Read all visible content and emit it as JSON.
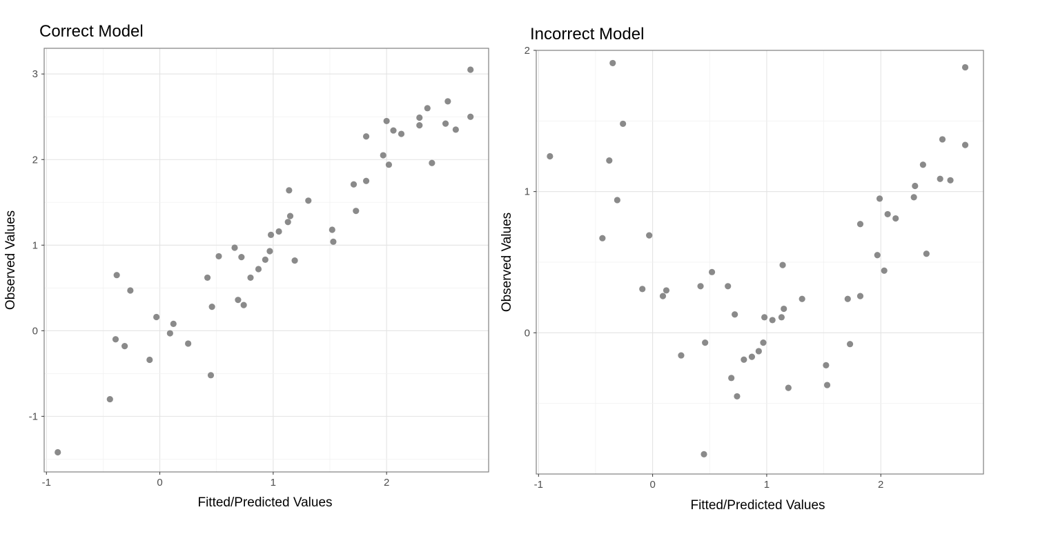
{
  "chart_data": [
    {
      "type": "scatter",
      "title": "Correct Model",
      "xlabel": "Fitted/Predicted Values",
      "ylabel": "Observed Values",
      "xlim": [
        -1.02,
        2.9
      ],
      "ylim": [
        -1.65,
        3.3
      ],
      "xticks": [
        -1,
        0,
        1,
        2
      ],
      "xtick_labels": [
        "-1",
        "0",
        "1",
        "2"
      ],
      "yticks": [
        -1,
        0,
        1,
        2,
        3
      ],
      "ytick_labels": [
        "-1",
        "0",
        "1",
        "2",
        "3"
      ],
      "grid": true,
      "point_color": "#8a8a8a",
      "points": [
        {
          "x": -0.9,
          "y": -1.42
        },
        {
          "x": -0.44,
          "y": -0.8
        },
        {
          "x": -0.38,
          "y": 0.65
        },
        {
          "x": -0.39,
          "y": -0.1
        },
        {
          "x": -0.31,
          "y": -0.18
        },
        {
          "x": -0.26,
          "y": 0.47
        },
        {
          "x": -0.09,
          "y": -0.34
        },
        {
          "x": -0.03,
          "y": 0.16
        },
        {
          "x": 0.09,
          "y": -0.03
        },
        {
          "x": 0.12,
          "y": 0.08
        },
        {
          "x": 0.25,
          "y": -0.15
        },
        {
          "x": 0.42,
          "y": 0.62
        },
        {
          "x": 0.45,
          "y": -0.52
        },
        {
          "x": 0.46,
          "y": 0.28
        },
        {
          "x": 0.52,
          "y": 0.87
        },
        {
          "x": 0.66,
          "y": 0.97
        },
        {
          "x": 0.69,
          "y": 0.36
        },
        {
          "x": 0.72,
          "y": 0.86
        },
        {
          "x": 0.74,
          "y": 0.3
        },
        {
          "x": 0.8,
          "y": 0.62
        },
        {
          "x": 0.87,
          "y": 0.72
        },
        {
          "x": 0.93,
          "y": 0.83
        },
        {
          "x": 0.97,
          "y": 0.93
        },
        {
          "x": 0.98,
          "y": 1.12
        },
        {
          "x": 1.05,
          "y": 1.16
        },
        {
          "x": 1.13,
          "y": 1.27
        },
        {
          "x": 1.15,
          "y": 1.34
        },
        {
          "x": 1.14,
          "y": 1.64
        },
        {
          "x": 1.19,
          "y": 0.82
        },
        {
          "x": 1.31,
          "y": 1.52
        },
        {
          "x": 1.52,
          "y": 1.18
        },
        {
          "x": 1.53,
          "y": 1.04
        },
        {
          "x": 1.71,
          "y": 1.71
        },
        {
          "x": 1.73,
          "y": 1.4
        },
        {
          "x": 1.82,
          "y": 1.75
        },
        {
          "x": 1.82,
          "y": 2.27
        },
        {
          "x": 1.97,
          "y": 2.05
        },
        {
          "x": 2.0,
          "y": 2.45
        },
        {
          "x": 2.02,
          "y": 1.94
        },
        {
          "x": 2.06,
          "y": 2.34
        },
        {
          "x": 2.13,
          "y": 2.3
        },
        {
          "x": 2.29,
          "y": 2.4
        },
        {
          "x": 2.29,
          "y": 2.49
        },
        {
          "x": 2.36,
          "y": 2.6
        },
        {
          "x": 2.4,
          "y": 1.96
        },
        {
          "x": 2.52,
          "y": 2.42
        },
        {
          "x": 2.54,
          "y": 2.68
        },
        {
          "x": 2.61,
          "y": 2.35
        },
        {
          "x": 2.74,
          "y": 3.05
        },
        {
          "x": 2.74,
          "y": 2.5
        }
      ]
    },
    {
      "type": "scatter",
      "title": "Incorrect Model",
      "xlabel": "Fitted/Predicted Values",
      "ylabel": "Observed Values",
      "xlim": [
        -1.02,
        2.9
      ],
      "ylim": [
        -1.0,
        2.0
      ],
      "xticks": [
        -1,
        0,
        1,
        2
      ],
      "xtick_labels": [
        "-1",
        "0",
        "1",
        "2"
      ],
      "yticks": [
        0,
        1,
        2
      ],
      "ytick_labels": [
        "0",
        "1",
        "2"
      ],
      "grid": true,
      "point_color": "#8a8a8a",
      "points": [
        {
          "x": -0.9,
          "y": 1.25
        },
        {
          "x": -0.44,
          "y": 0.67
        },
        {
          "x": -0.38,
          "y": 1.22
        },
        {
          "x": -0.35,
          "y": 1.91
        },
        {
          "x": -0.31,
          "y": 0.94
        },
        {
          "x": -0.26,
          "y": 1.48
        },
        {
          "x": -0.09,
          "y": 0.31
        },
        {
          "x": -0.03,
          "y": 0.69
        },
        {
          "x": 0.09,
          "y": 0.26
        },
        {
          "x": 0.12,
          "y": 0.3
        },
        {
          "x": 0.25,
          "y": -0.16
        },
        {
          "x": 0.42,
          "y": 0.33
        },
        {
          "x": 0.45,
          "y": -0.86
        },
        {
          "x": 0.46,
          "y": -0.07
        },
        {
          "x": 0.52,
          "y": 0.43
        },
        {
          "x": 0.66,
          "y": 0.33
        },
        {
          "x": 0.69,
          "y": -0.32
        },
        {
          "x": 0.72,
          "y": 0.13
        },
        {
          "x": 0.74,
          "y": -0.45
        },
        {
          "x": 0.8,
          "y": -0.19
        },
        {
          "x": 0.87,
          "y": -0.17
        },
        {
          "x": 0.93,
          "y": -0.13
        },
        {
          "x": 0.97,
          "y": -0.07
        },
        {
          "x": 0.98,
          "y": 0.11
        },
        {
          "x": 1.05,
          "y": 0.09
        },
        {
          "x": 1.13,
          "y": 0.11
        },
        {
          "x": 1.14,
          "y": 0.48
        },
        {
          "x": 1.15,
          "y": 0.17
        },
        {
          "x": 1.19,
          "y": -0.39
        },
        {
          "x": 1.31,
          "y": 0.24
        },
        {
          "x": 1.52,
          "y": -0.23
        },
        {
          "x": 1.53,
          "y": -0.37
        },
        {
          "x": 1.71,
          "y": 0.24
        },
        {
          "x": 1.73,
          "y": -0.08
        },
        {
          "x": 1.82,
          "y": 0.26
        },
        {
          "x": 1.82,
          "y": 0.77
        },
        {
          "x": 1.97,
          "y": 0.55
        },
        {
          "x": 1.99,
          "y": 0.95
        },
        {
          "x": 2.03,
          "y": 0.44
        },
        {
          "x": 2.06,
          "y": 0.84
        },
        {
          "x": 2.13,
          "y": 0.81
        },
        {
          "x": 2.29,
          "y": 0.96
        },
        {
          "x": 2.3,
          "y": 1.04
        },
        {
          "x": 2.37,
          "y": 1.19
        },
        {
          "x": 2.4,
          "y": 0.56
        },
        {
          "x": 2.52,
          "y": 1.09
        },
        {
          "x": 2.54,
          "y": 1.37
        },
        {
          "x": 2.61,
          "y": 1.08
        },
        {
          "x": 2.74,
          "y": 1.88
        },
        {
          "x": 2.74,
          "y": 1.33
        }
      ]
    }
  ]
}
